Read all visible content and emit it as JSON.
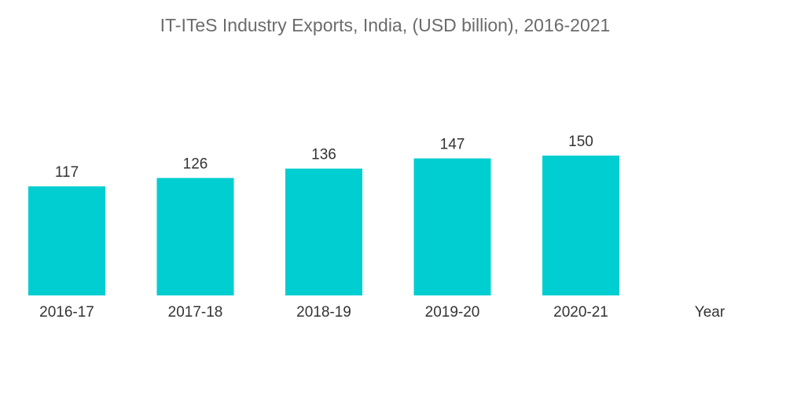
{
  "chart_data": {
    "type": "bar",
    "title": "IT-ITeS Industry Exports, India, (USD billion), 2016-2021",
    "xlabel": "Year",
    "ylabel": "",
    "categories": [
      "2016-17",
      "2017-18",
      "2018-19",
      "2019-20",
      "2020-21"
    ],
    "values": [
      117,
      126,
      136,
      147,
      150
    ],
    "ylim": [
      0,
      150
    ],
    "grid": false,
    "legend": "none",
    "data_labels": true,
    "bar_color": "#00CED1"
  }
}
